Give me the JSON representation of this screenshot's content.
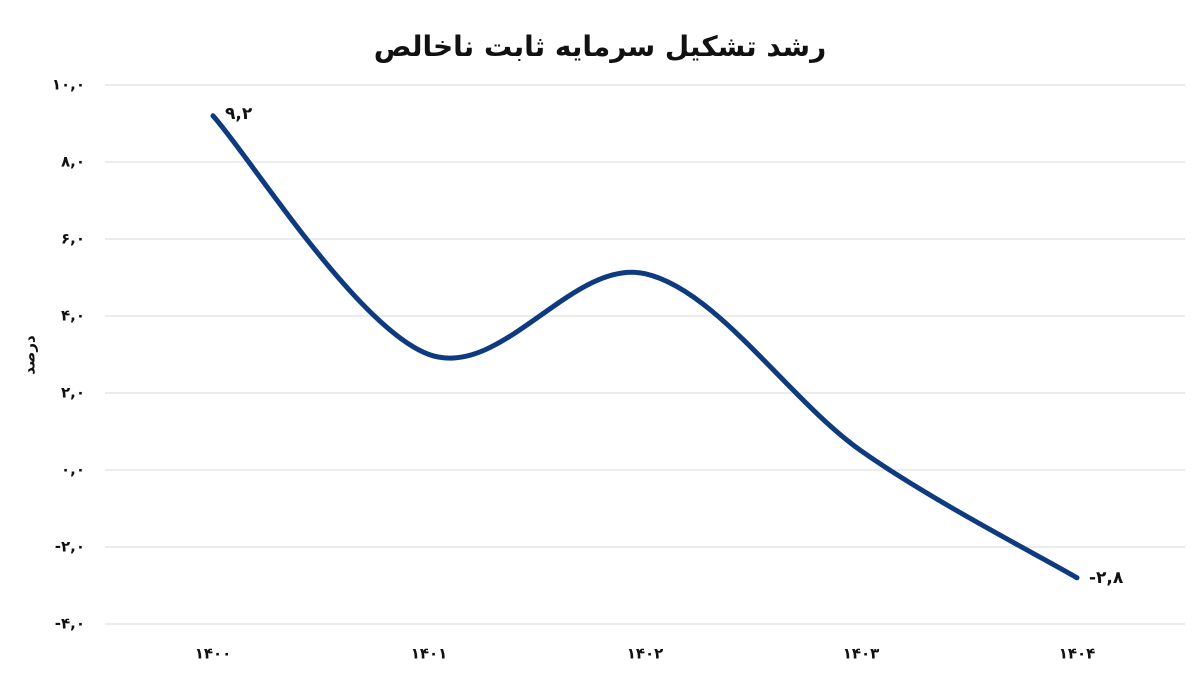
{
  "chart_data": {
    "type": "line",
    "title": "رشد تشکیل سرمایه ثابت ناخالص",
    "y_label": "درصد",
    "categories": [
      "۱۴۰۰",
      "۱۴۰۱",
      "۱۴۰۲",
      "۱۴۰۳",
      "۱۴۰۴"
    ],
    "series": [
      {
        "color": "#0e3a80",
        "values": [
          9.2,
          3.0,
          5.1,
          0.5,
          -2.8
        ],
        "value_labels": [
          "۹,۲",
          null,
          null,
          null,
          "-۲,۸"
        ]
      }
    ],
    "ylim": [
      -4,
      10
    ],
    "yticks": [
      {
        "value": -4,
        "label": "-۴,۰"
      },
      {
        "value": -2,
        "label": "-۲,۰"
      },
      {
        "value": 0,
        "label": "۰,۰"
      },
      {
        "value": 2,
        "label": "۲,۰"
      },
      {
        "value": 4,
        "label": "۴,۰"
      },
      {
        "value": 6,
        "label": "۶,۰"
      },
      {
        "value": 8,
        "label": "۸,۰"
      },
      {
        "value": 10,
        "label": "۱۰,۰"
      }
    ],
    "grid": true,
    "smooth": true
  }
}
